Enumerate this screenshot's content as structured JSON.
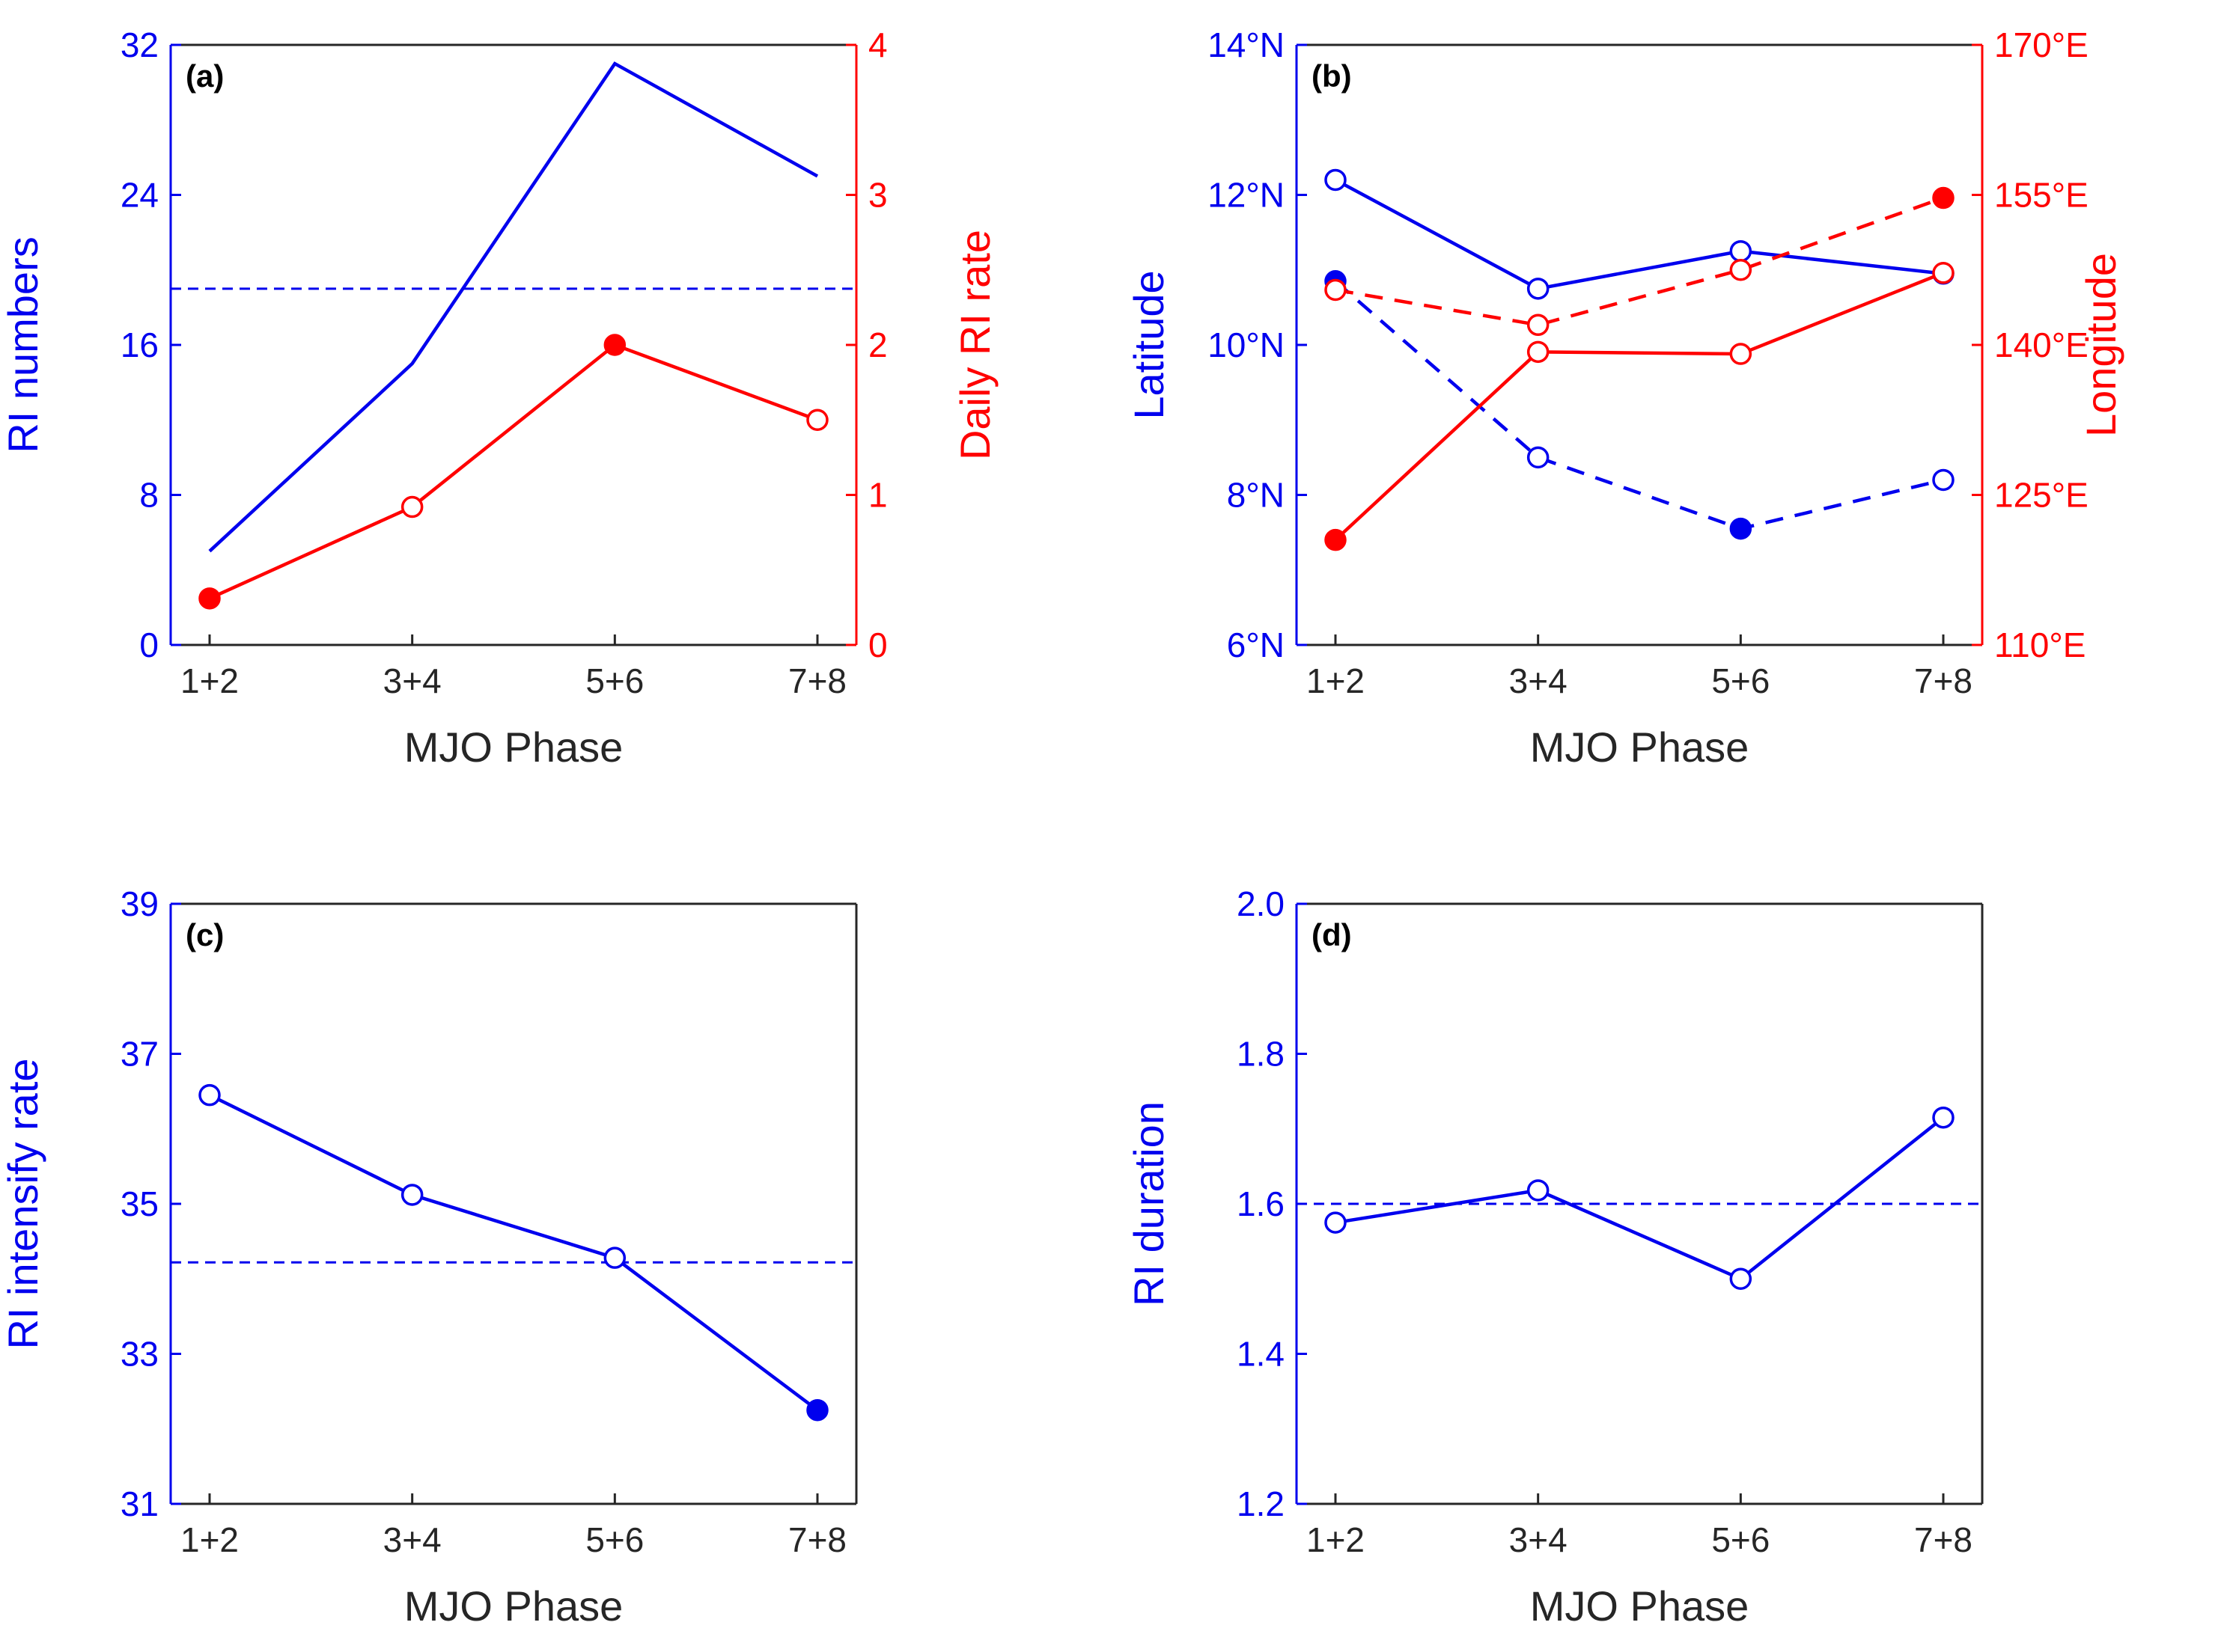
{
  "colors": {
    "blue": "#0000ee",
    "red": "#ff0000",
    "axis": "#262626"
  },
  "chart_data": [
    {
      "id": "a",
      "type": "line",
      "panel_label": "(a)",
      "xlabel": "MJO Phase",
      "categories": [
        "1+2",
        "3+4",
        "5+6",
        "7+8"
      ],
      "left_axis": {
        "label": "RI numbers",
        "ylim": [
          0,
          32
        ],
        "ticks": [
          "0",
          "8",
          "16",
          "24",
          "32"
        ],
        "color": "blue"
      },
      "right_axis": {
        "label": "Daily RI rate",
        "ylim": [
          0,
          4
        ],
        "ticks": [
          "0",
          "1",
          "2",
          "3",
          "4"
        ],
        "color": "red"
      },
      "series": [
        {
          "name": "RI numbers",
          "axis": "left",
          "color": "blue",
          "line": "solid",
          "values": [
            5,
            15,
            31,
            25
          ],
          "markers": [
            "none",
            "none",
            "none",
            "none"
          ]
        },
        {
          "name": "Daily RI rate",
          "axis": "right",
          "color": "red",
          "line": "solid",
          "values": [
            0.31,
            0.92,
            2.0,
            1.5
          ],
          "markers": [
            "filled",
            "open",
            "filled",
            "open"
          ]
        }
      ],
      "reference_lines": [
        {
          "axis": "left",
          "color": "blue",
          "value": 19
        }
      ]
    },
    {
      "id": "b",
      "type": "line",
      "panel_label": "(b)",
      "xlabel": "MJO Phase",
      "categories": [
        "1+2",
        "3+4",
        "5+6",
        "7+8"
      ],
      "left_axis": {
        "label": "Latitude",
        "ylim": [
          6,
          14
        ],
        "ticks": [
          "6°N",
          "8°N",
          "10°N",
          "12°N",
          "14°N"
        ],
        "color": "blue"
      },
      "right_axis": {
        "label": "Longitude",
        "ylim": [
          110,
          170
        ],
        "ticks": [
          "110°E",
          "125°E",
          "140°E",
          "155°E",
          "170°E"
        ],
        "color": "red"
      },
      "series": [
        {
          "name": "Latitude solid",
          "axis": "left",
          "color": "blue",
          "line": "solid",
          "values": [
            12.2,
            10.75,
            11.25,
            10.95
          ],
          "markers": [
            "open",
            "open",
            "open",
            "open"
          ]
        },
        {
          "name": "Latitude dashed",
          "axis": "left",
          "color": "blue",
          "line": "dashed",
          "values": [
            10.85,
            8.5,
            7.55,
            8.2
          ],
          "markers": [
            "filled",
            "open",
            "filled",
            "open"
          ]
        },
        {
          "name": "Longitude solid",
          "axis": "right",
          "color": "red",
          "line": "solid",
          "values": [
            120.5,
            139.3,
            139.1,
            147.2
          ],
          "markers": [
            "filled",
            "open",
            "open",
            "open"
          ]
        },
        {
          "name": "Longitude dashed",
          "axis": "right",
          "color": "red",
          "line": "dashed",
          "values": [
            145.5,
            142.0,
            147.5,
            154.7
          ],
          "markers": [
            "open",
            "open",
            "open",
            "filled"
          ]
        }
      ],
      "reference_lines": []
    },
    {
      "id": "c",
      "type": "line",
      "panel_label": "(c)",
      "xlabel": "MJO Phase",
      "categories": [
        "1+2",
        "3+4",
        "5+6",
        "7+8"
      ],
      "left_axis": {
        "label": "RI intensify rate",
        "ylim": [
          31,
          39
        ],
        "ticks": [
          "31",
          "33",
          "35",
          "37",
          "39"
        ],
        "color": "blue"
      },
      "right_axis": null,
      "series": [
        {
          "name": "RI intensify rate",
          "axis": "left",
          "color": "blue",
          "line": "solid",
          "values": [
            36.45,
            35.12,
            34.28,
            32.25
          ],
          "markers": [
            "open",
            "open",
            "open",
            "filled"
          ]
        }
      ],
      "reference_lines": [
        {
          "axis": "left",
          "color": "blue",
          "value": 34.22
        }
      ]
    },
    {
      "id": "d",
      "type": "line",
      "panel_label": "(d)",
      "xlabel": "MJO Phase",
      "categories": [
        "1+2",
        "3+4",
        "5+6",
        "7+8"
      ],
      "left_axis": {
        "label": "RI duration",
        "ylim": [
          1.2,
          2.0
        ],
        "ticks": [
          "1.2",
          "1.4",
          "1.6",
          "1.8",
          "2.0"
        ],
        "color": "blue"
      },
      "right_axis": null,
      "series": [
        {
          "name": "RI duration",
          "axis": "left",
          "color": "blue",
          "line": "solid",
          "values": [
            1.575,
            1.618,
            1.5,
            1.715
          ],
          "markers": [
            "open",
            "open",
            "open",
            "open"
          ]
        }
      ],
      "reference_lines": [
        {
          "axis": "left",
          "color": "blue",
          "value": 1.6
        }
      ]
    }
  ]
}
